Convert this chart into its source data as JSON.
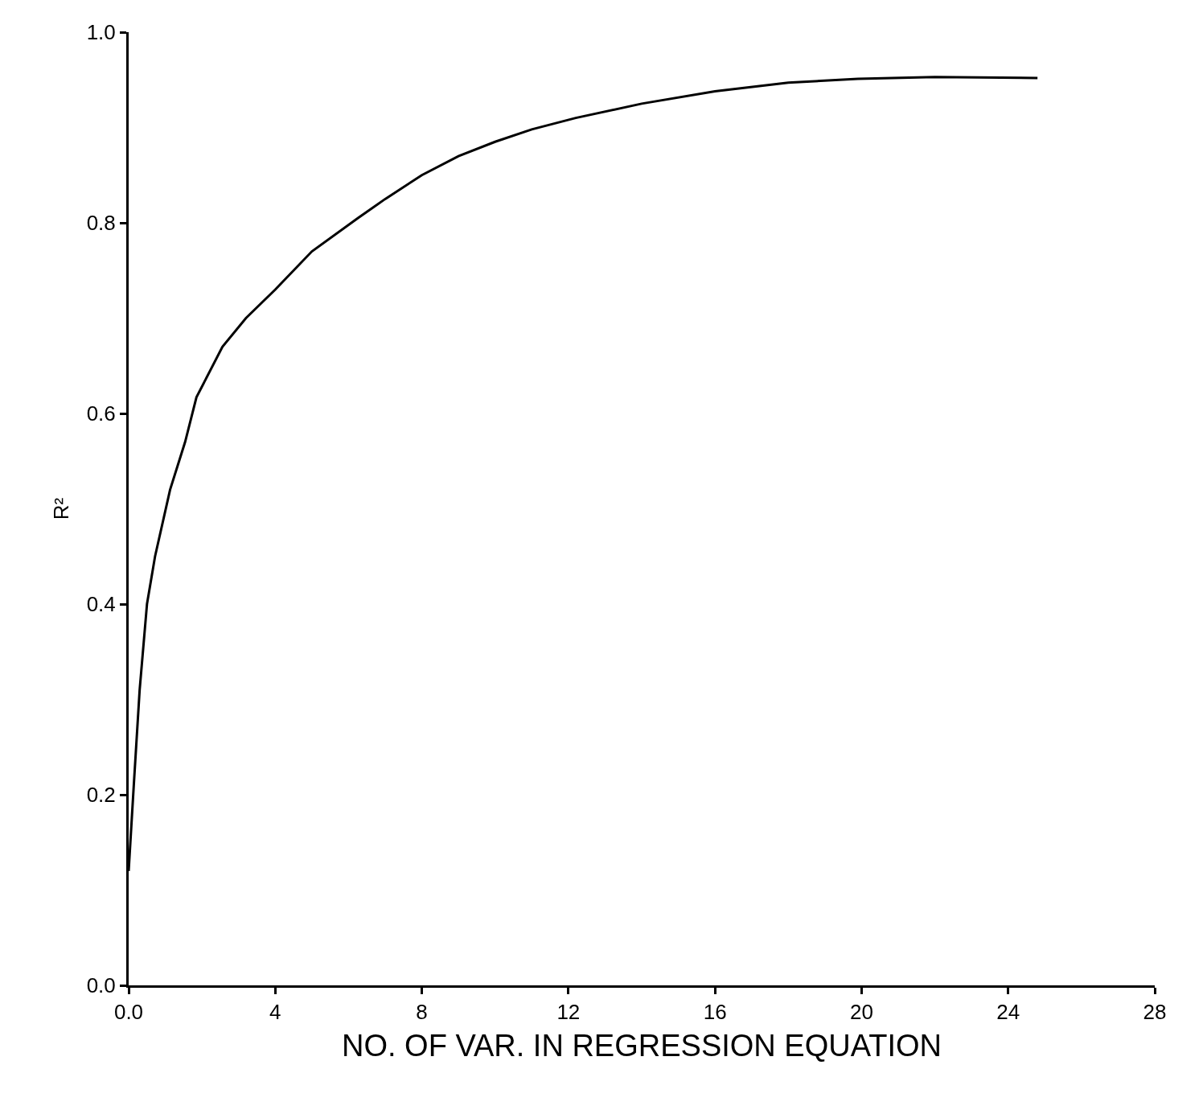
{
  "chart_data": {
    "type": "line",
    "xlabel": "NO. OF VAR. IN REGRESSION EQUATION",
    "ylabel": "R²",
    "x": [
      0,
      0.14,
      0.3,
      0.5,
      0.72,
      1.13,
      1.54,
      1.85,
      2.56,
      3.2,
      4.0,
      5.0,
      6.26,
      7.0,
      8.0,
      9.0,
      10.0,
      11.0,
      12.2,
      14.0,
      16.0,
      18.0,
      19.9,
      22.0,
      24.8
    ],
    "series": [
      {
        "color": "#000000",
        "values": [
          0.12,
          0.21,
          0.31,
          0.4,
          0.45,
          0.52,
          0.57,
          0.617,
          0.67,
          0.7,
          0.73,
          0.77,
          0.805,
          0.825,
          0.85,
          0.87,
          0.885,
          0.898,
          0.91,
          0.925,
          0.938,
          0.947,
          0.951,
          0.953,
          0.952
        ]
      }
    ],
    "xlim": [
      0,
      28
    ],
    "ylim": [
      0,
      1
    ],
    "xticks": [
      {
        "value": 0,
        "label": "0.0"
      },
      4,
      8,
      12,
      16,
      20,
      24,
      28
    ],
    "yticks": [
      {
        "value": 0,
        "label": "0.0"
      },
      {
        "value": 0.2,
        "label": "0.2"
      },
      {
        "value": 0.4,
        "label": "0.4"
      },
      {
        "value": 0.6,
        "label": "0.6"
      },
      {
        "value": 0.8,
        "label": "0.8"
      },
      {
        "value": 1,
        "label": "1.0"
      }
    ],
    "marker": "none",
    "line_style": "solid"
  }
}
